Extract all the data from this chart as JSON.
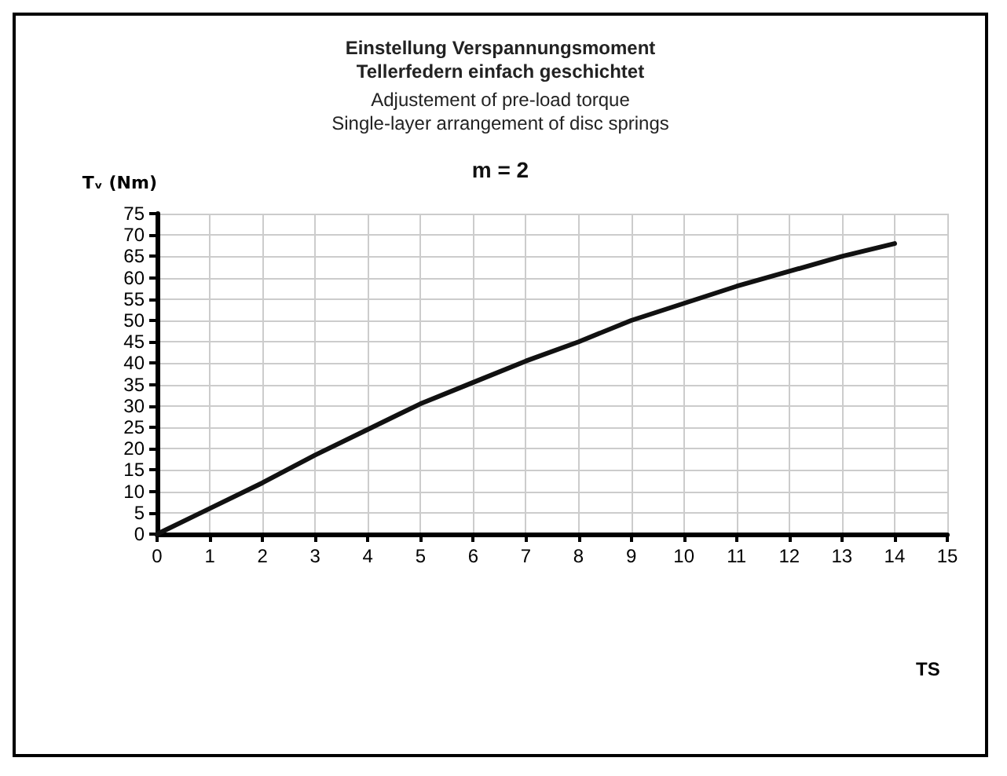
{
  "chart_data": {
    "type": "line",
    "title": "Einstellung Verspannungsmoment\nTellerfedern einfach geschichtet",
    "subtitle": "Adjustement of pre-load torque\nSingle-layer arrangement of disc springs",
    "annotations": [
      "m = 2"
    ],
    "xlabel": "TS",
    "ylabel": "Tᵥ (Nm)",
    "x": [
      0,
      1,
      2,
      3,
      4,
      5,
      6,
      7,
      8,
      9,
      10,
      11,
      12,
      13,
      14
    ],
    "series": [
      {
        "color": "#111111",
        "values": [
          0,
          6,
          12,
          18.5,
          24.5,
          30.5,
          35.5,
          40.5,
          45,
          50,
          54,
          58,
          61.5,
          65,
          68
        ]
      }
    ],
    "xlim": [
      0,
      15
    ],
    "xticks": [
      0,
      1,
      2,
      3,
      4,
      5,
      6,
      7,
      8,
      9,
      10,
      11,
      12,
      13,
      14,
      15
    ],
    "ylim": [
      0,
      75
    ],
    "yticks": [
      0,
      5,
      10,
      15,
      20,
      25,
      30,
      35,
      40,
      45,
      50,
      55,
      60,
      65,
      70,
      75
    ],
    "grid": true,
    "marker": "none",
    "line_style": "solid"
  }
}
